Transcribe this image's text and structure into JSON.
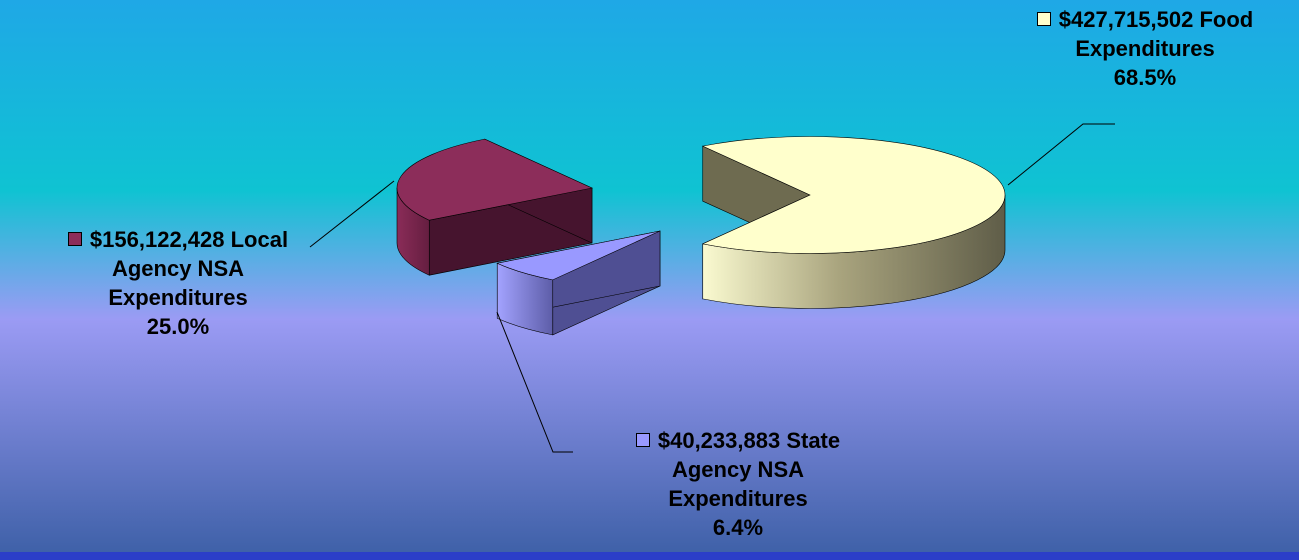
{
  "colors": {
    "bg_top": "#1fa8e6",
    "bg_teal": "#0fc3d2",
    "bg_mid": "#9b9bf4",
    "bg_bottom": "#3c5fa6",
    "footer_bar": "#2b3ec8"
  },
  "chart_data": {
    "type": "pie",
    "style": "3d-exploded",
    "title": "",
    "slices": [
      {
        "name": "Food Expenditures",
        "amount": "$427,715,502",
        "value": 427715502,
        "percent": 68.5,
        "percent_label": "68.5%",
        "label_lines": [
          "$427,715,502 Food",
          "Expenditures",
          "68.5%"
        ],
        "color": "#ffffcc",
        "side_color": "#8a876a"
      },
      {
        "name": "State Agency NSA Expenditures",
        "amount": "$40,233,883",
        "value": 40233883,
        "percent": 6.4,
        "percent_label": "6.4%",
        "label_lines": [
          "$40,233,883 State",
          "Agency NSA",
          "Expenditures",
          "6.4%"
        ],
        "color": "#9999ff",
        "side_color": "#5b5ba0"
      },
      {
        "name": "Local Agency NSA Expenditures",
        "amount": "$156,122,428",
        "value": 156122428,
        "percent": 25.0,
        "percent_label": "25.0%",
        "label_lines": [
          "$156,122,428 Local",
          "Agency NSA",
          "Expenditures",
          "25.0%"
        ],
        "color": "#8c2d5a",
        "side_color": "#5a1a38"
      }
    ]
  }
}
